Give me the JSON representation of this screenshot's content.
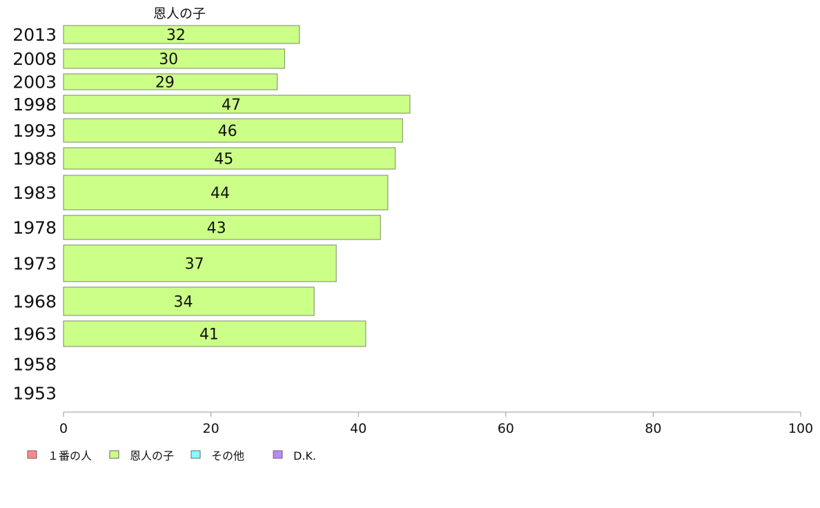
{
  "chart_data": {
    "type": "bar",
    "orientation": "horizontal",
    "series_title": "恩人の子",
    "categories": [
      "2013",
      "2008",
      "2003",
      "1998",
      "1993",
      "1988",
      "1983",
      "1978",
      "1973",
      "1968",
      "1963",
      "1958",
      "1953"
    ],
    "series": [
      {
        "name": "恩人の子",
        "color": "#ccff88",
        "values": [
          32,
          30,
          29,
          47,
          46,
          45,
          44,
          43,
          37,
          34,
          41,
          null,
          null
        ]
      }
    ],
    "xlim": [
      0,
      100
    ],
    "xticks": [
      0,
      20,
      40,
      60,
      80,
      100
    ],
    "legend": {
      "placement": "bottom-left",
      "items": [
        {
          "label": "１番の人",
          "color": "#ff8888"
        },
        {
          "label": "恩人の子",
          "color": "#ccff88"
        },
        {
          "label": "その他",
          "color": "#88ffff"
        },
        {
          "label": "D.K.",
          "color": "#bb88ff"
        }
      ]
    },
    "grid": false
  }
}
